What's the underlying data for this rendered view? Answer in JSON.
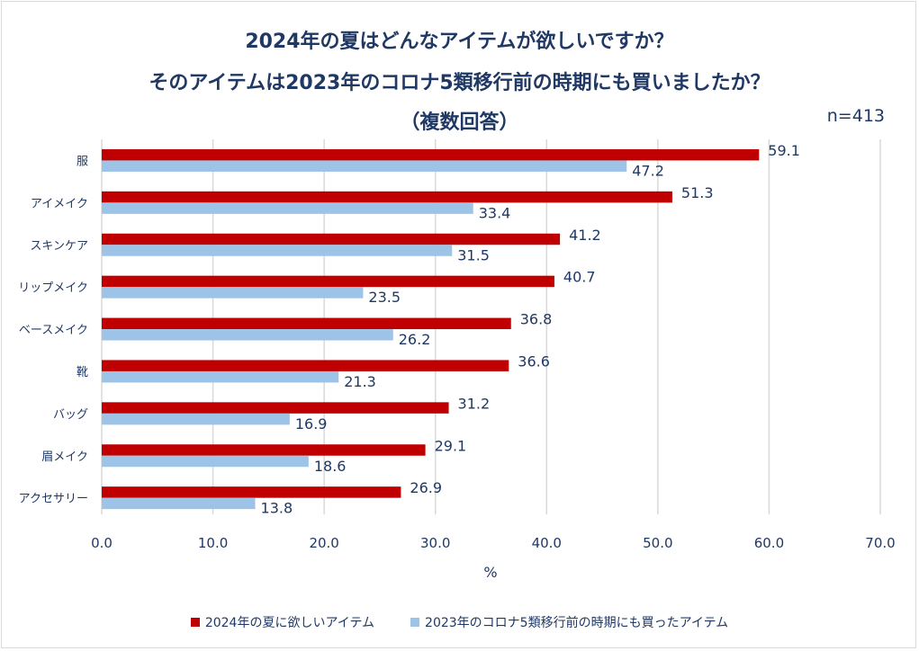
{
  "chart_data": {
    "type": "bar",
    "orientation": "horizontal",
    "title_lines": [
      "2024年の夏はどんなアイテムが欲しいですか？",
      "そのアイテムは2023年のコロナ5類移行前の時期にも買いましたか？",
      "（複数回答）"
    ],
    "note": "n=413",
    "categories": [
      "服",
      "アイメイク",
      "スキンケア",
      "リップメイク",
      "ベースメイク",
      "靴",
      "バッグ",
      "眉メイク",
      "アクセサリー"
    ],
    "series": [
      {
        "name": "2024年の夏に欲しいアイテム",
        "color": "#C00000",
        "values": [
          59.1,
          51.3,
          41.2,
          40.7,
          36.8,
          36.6,
          31.2,
          29.1,
          26.9
        ]
      },
      {
        "name": "2023年のコロナ5類移行前の時期にも買ったアイテム",
        "color": "#9DC3E6",
        "values": [
          47.2,
          33.4,
          31.5,
          23.5,
          26.2,
          21.3,
          16.9,
          18.6,
          13.8
        ]
      }
    ],
    "xlabel": "%",
    "xlim": [
      0,
      70
    ],
    "xticks": [
      "0.0",
      "10.0",
      "20.0",
      "30.0",
      "40.0",
      "50.0",
      "60.0",
      "70.0"
    ],
    "grid": true,
    "legend_position": "bottom"
  }
}
